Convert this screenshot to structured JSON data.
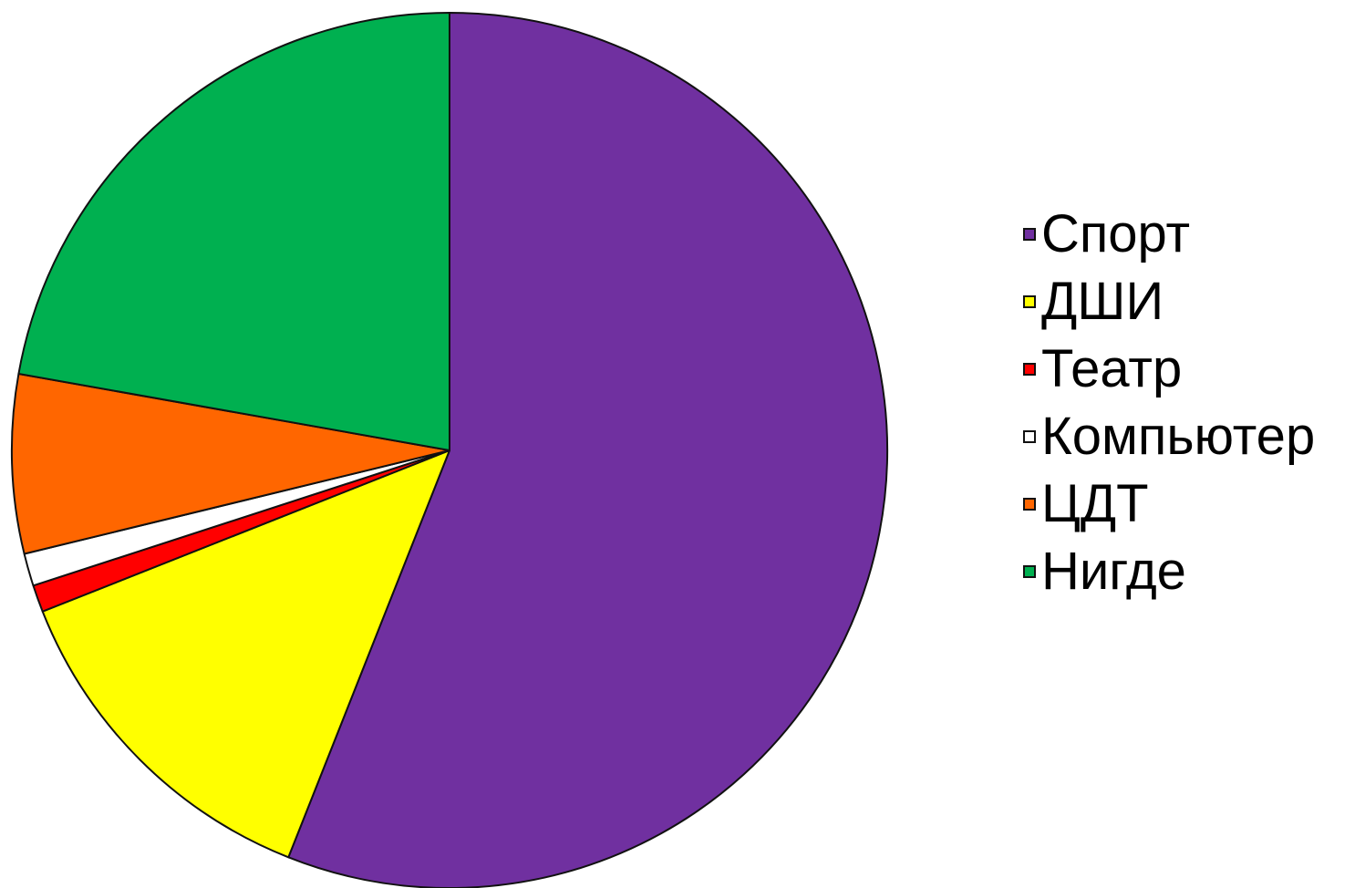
{
  "chart_data": {
    "type": "pie",
    "legend_position": "right",
    "slices": [
      {
        "label": "Спорт",
        "value": 56.0,
        "color": "#7030A0"
      },
      {
        "label": "ДШИ",
        "value": 13.0,
        "color": "#FFFF00"
      },
      {
        "label": "Театр",
        "value": 1.0,
        "color": "#FF0000"
      },
      {
        "label": "Компьютер",
        "value": 1.2,
        "color": "#FFFFFF"
      },
      {
        "label": "ЦДТ",
        "value": 6.6,
        "color": "#FF6600"
      },
      {
        "label": "Нигде",
        "value": 22.2,
        "color": "#00B050"
      }
    ]
  }
}
